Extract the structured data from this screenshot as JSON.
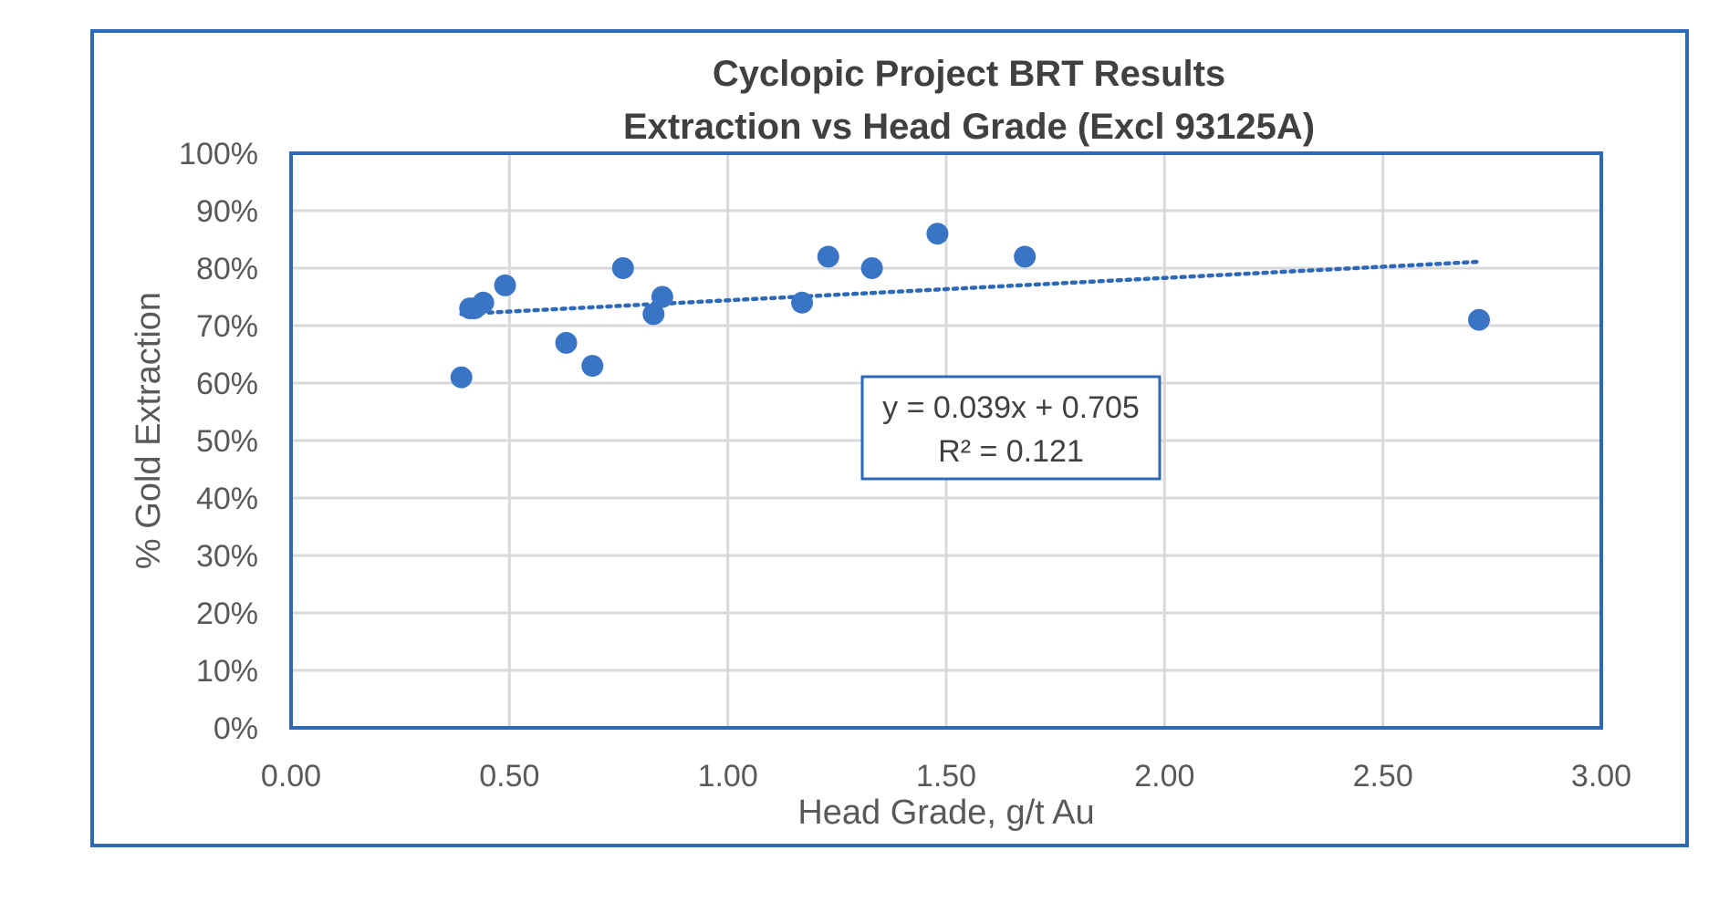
{
  "chart_data": {
    "type": "scatter",
    "title": [
      "Cyclopic Project BRT Results",
      "Extraction vs Head Grade (Excl 93125A)"
    ],
    "xlabel": "Head Grade, g/t Au",
    "ylabel": "% Gold Extraction",
    "xlim": [
      0,
      3
    ],
    "ylim": [
      0,
      1
    ],
    "x_ticks": [
      0,
      0.5,
      1,
      1.5,
      2,
      2.5,
      3
    ],
    "x_tick_labels": [
      "0.00",
      "0.50",
      "1.00",
      "1.50",
      "2.00",
      "2.50",
      "3.00"
    ],
    "y_ticks": [
      0,
      0.1,
      0.2,
      0.3,
      0.4,
      0.5,
      0.6,
      0.7,
      0.8,
      0.9,
      1
    ],
    "y_tick_labels": [
      "0%",
      "10%",
      "20%",
      "30%",
      "40%",
      "50%",
      "60%",
      "70%",
      "80%",
      "90%",
      "100%"
    ],
    "grid": true,
    "series": [
      {
        "points": [
          {
            "x": 0.39,
            "y": 0.61
          },
          {
            "x": 0.41,
            "y": 0.73
          },
          {
            "x": 0.42,
            "y": 0.73
          },
          {
            "x": 0.44,
            "y": 0.74
          },
          {
            "x": 0.49,
            "y": 0.77
          },
          {
            "x": 0.63,
            "y": 0.67
          },
          {
            "x": 0.69,
            "y": 0.63
          },
          {
            "x": 0.76,
            "y": 0.8
          },
          {
            "x": 0.83,
            "y": 0.72
          },
          {
            "x": 0.85,
            "y": 0.75
          },
          {
            "x": 1.17,
            "y": 0.74
          },
          {
            "x": 1.23,
            "y": 0.82
          },
          {
            "x": 1.33,
            "y": 0.8
          },
          {
            "x": 1.48,
            "y": 0.86
          },
          {
            "x": 1.68,
            "y": 0.82
          },
          {
            "x": 2.72,
            "y": 0.71
          }
        ]
      }
    ],
    "trendline": {
      "type": "linear-dotted",
      "slope": 0.039,
      "intercept": 0.705,
      "x_range": [
        0.39,
        2.72
      ],
      "equation_label": "y = 0.039x + 0.705",
      "r2_label": "R² = 0.121"
    },
    "colors": {
      "marker": "#3a74c4",
      "frame": "#2e69b8",
      "grid": "#d9d9d9",
      "trendline": "#2e69b8"
    }
  }
}
